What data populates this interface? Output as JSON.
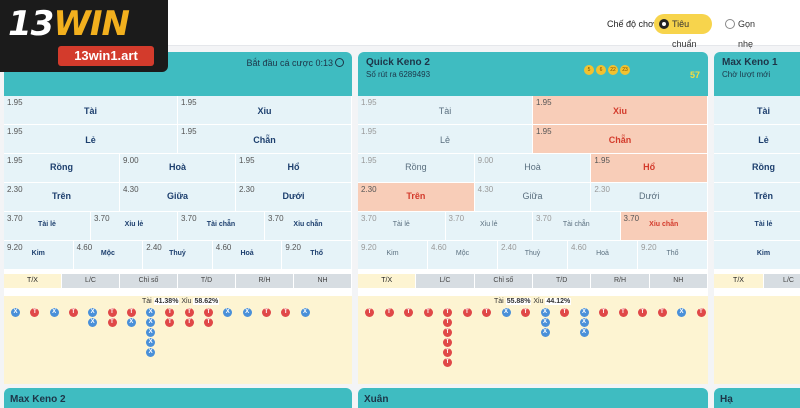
{
  "logo": {
    "brand_a": "13",
    "brand_b": "WIN",
    "url": "13win1.art"
  },
  "mode": {
    "label": "Chế độ chơi",
    "standard": "Tiêu chuẩn",
    "simple": "Gọn nhẹ"
  },
  "panels": [
    {
      "title": "",
      "subtitle": "",
      "status": "Bắt đầu cá cược 0:13",
      "rows": [
        [
          {
            "o": "1.95",
            "n": "Tài"
          },
          {
            "o": "1.95",
            "n": "Xỉu"
          }
        ],
        [
          {
            "o": "1.95",
            "n": "Lẻ"
          },
          {
            "o": "1.95",
            "n": "Chẵn"
          }
        ],
        [
          {
            "o": "1.95",
            "n": "Rồng"
          },
          {
            "o": "9.00",
            "n": "Hoà"
          },
          {
            "o": "1.95",
            "n": "Hổ"
          }
        ],
        [
          {
            "o": "2.30",
            "n": "Trên"
          },
          {
            "o": "4.30",
            "n": "Giữa"
          },
          {
            "o": "2.30",
            "n": "Dưới"
          }
        ],
        [
          {
            "o": "3.70",
            "n": "Tài lẻ"
          },
          {
            "o": "3.70",
            "n": "Xỉu lẻ"
          },
          {
            "o": "3.70",
            "n": "Tài chẵn"
          },
          {
            "o": "3.70",
            "n": "Xỉu chẵn"
          }
        ],
        [
          {
            "o": "9.20",
            "n": "Kim"
          },
          {
            "o": "4.60",
            "n": "Mộc"
          },
          {
            "o": "2.40",
            "n": "Thuỷ"
          },
          {
            "o": "4.60",
            "n": "Hoả"
          },
          {
            "o": "9.20",
            "n": "Thổ"
          }
        ]
      ],
      "tabs": [
        "T/X",
        "L/C",
        "Chỉ số",
        "T/D",
        "R/H",
        "NH"
      ],
      "stat_a_label": "Tài",
      "stat_a": "41.38%",
      "stat_b_label": "Xỉu",
      "stat_b": "58.62%",
      "road": [
        "X",
        "T",
        "X",
        "T",
        "XX",
        "TT",
        "TX",
        "XXXXX",
        "TT",
        "TT",
        "TT",
        "X",
        "X",
        "T",
        "T",
        "X"
      ]
    },
    {
      "title": "Quick Keno 2",
      "subtitle": "Số rút ra 6289493",
      "count": "57",
      "balls": [
        "5",
        "6",
        "22",
        "23"
      ],
      "rows": [
        [
          {
            "o": "1.95",
            "n": "Tài"
          },
          {
            "o": "1.95",
            "n": "Xỉu",
            "hi": true
          }
        ],
        [
          {
            "o": "1.95",
            "n": "Lẻ"
          },
          {
            "o": "1.95",
            "n": "Chẵn",
            "hi": true
          }
        ],
        [
          {
            "o": "1.95",
            "n": "Rồng"
          },
          {
            "o": "9.00",
            "n": "Hoà"
          },
          {
            "o": "1.95",
            "n": "Hổ",
            "hi": true
          }
        ],
        [
          {
            "o": "2.30",
            "n": "Trên",
            "hi": true
          },
          {
            "o": "4.30",
            "n": "Giữa"
          },
          {
            "o": "2.30",
            "n": "Dưới"
          }
        ],
        [
          {
            "o": "3.70",
            "n": "Tài lẻ"
          },
          {
            "o": "3.70",
            "n": "Xỉu lẻ"
          },
          {
            "o": "3.70",
            "n": "Tài chẵn"
          },
          {
            "o": "3.70",
            "n": "Xỉu chẵn",
            "hi": true
          }
        ],
        [
          {
            "o": "9.20",
            "n": "Kim"
          },
          {
            "o": "4.60",
            "n": "Mộc"
          },
          {
            "o": "2.40",
            "n": "Thuỷ"
          },
          {
            "o": "4.60",
            "n": "Hoả"
          },
          {
            "o": "9.20",
            "n": "Thổ"
          }
        ]
      ],
      "tabs": [
        "T/X",
        "L/C",
        "Chỉ số",
        "T/D",
        "R/H",
        "NH"
      ],
      "stat_a_label": "Tài",
      "stat_a": "55.88%",
      "stat_b_label": "Xỉu",
      "stat_b": "44.12%",
      "road": [
        "T",
        "T",
        "T",
        "T",
        "TTTTTT",
        "T",
        "T",
        "X",
        "T",
        "XXX",
        "T",
        "XXX",
        "T",
        "T",
        "T",
        "T",
        "X",
        "T"
      ]
    },
    {
      "title": "Max Keno 1",
      "subtitle": "Chờ lượt mới",
      "rows": [
        [
          {
            "o": "",
            "n": "Tài"
          }
        ],
        [
          {
            "o": "",
            "n": "Lẻ"
          }
        ],
        [
          {
            "o": "",
            "n": "Rồng"
          }
        ],
        [
          {
            "o": "",
            "n": "Trên"
          }
        ],
        [
          {
            "o": "",
            "n": "Tài lẻ"
          }
        ],
        [
          {
            "o": "",
            "n": "Kim"
          }
        ]
      ],
      "tabs": [
        "T/X",
        "L/C"
      ]
    }
  ],
  "bottom": [
    "Max Keno 2",
    "Xuân",
    "Hạ"
  ]
}
